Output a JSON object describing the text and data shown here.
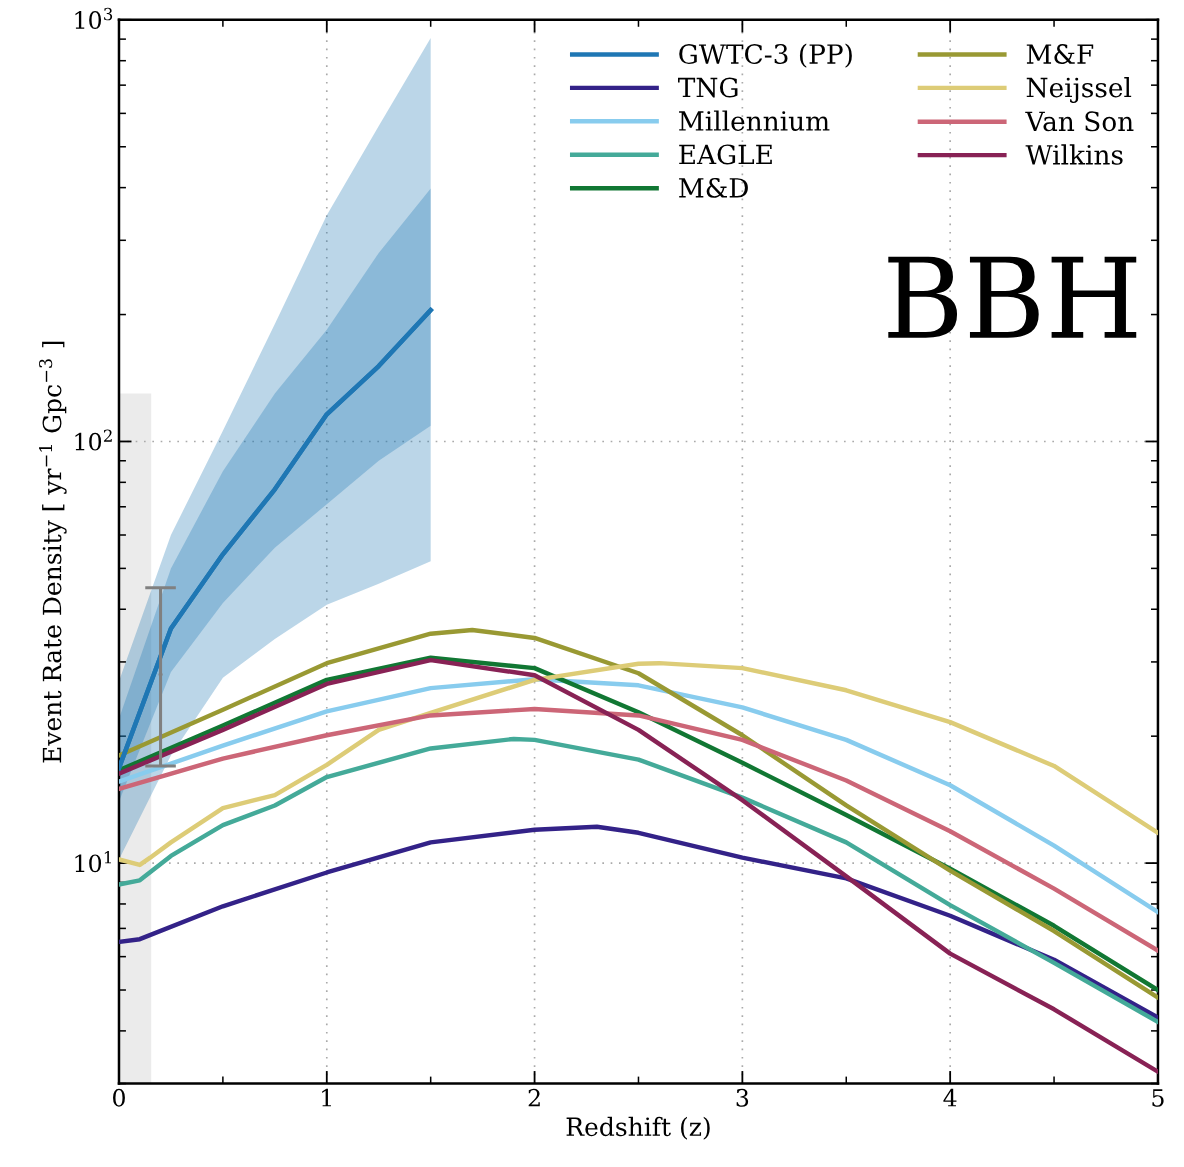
{
  "chart_data": {
    "type": "line",
    "xlabel": "Redshift (z)",
    "ylabel": "Event Rate Density [ yr$^{−1}$ Gpc$^{−3}$ ]",
    "log": "y",
    "xlim": [
      0,
      5
    ],
    "ylim": [
      3,
      1000
    ],
    "xticks": [
      0,
      1,
      2,
      3,
      4,
      5
    ],
    "yticks": [
      {
        "value": 10,
        "label": "10$^{1}$"
      },
      {
        "value": 100,
        "label": "10$^{2}$"
      },
      {
        "value": 1000,
        "label": "10$^{3}$"
      }
    ],
    "grid": true,
    "legend": "top right",
    "line_style": "solid",
    "marker": "none",
    "annotations": [
      "BBH"
    ],
    "series": [
      {
        "type": "area",
        "color": "#ebebeb",
        "x": [
          0,
          0.155
        ],
        "values": [
          130,
          130
        ]
      },
      {
        "color": "#1f77b4",
        "x": [
          0,
          0.25,
          0.5,
          0.75,
          1,
          1.25,
          1.5
        ],
        "values": [
          16.8,
          36,
          54,
          77,
          116,
          151,
          205
        ],
        "lower": [
          14,
          28.4,
          41.4,
          56,
          71,
          90,
          109
        ],
        "upper": [
          22,
          50,
          85,
          130,
          184,
          280,
          398
        ]
      },
      {
        "name": "GWTC-3 (PP)",
        "color": "#1f77b4",
        "x": [
          0,
          0.25,
          0.5,
          0.75,
          1,
          1.25,
          1.5
        ],
        "values": [
          16.8,
          36,
          54,
          77,
          116,
          151,
          205
        ],
        "lower": [
          10.2,
          18,
          27.5,
          34,
          41,
          46,
          52
        ],
        "upper": [
          27,
          60,
          106,
          190,
          344,
          560,
          906
        ]
      },
      {
        "name": "TNG",
        "color": "#332288",
        "x": [
          0,
          0.1,
          0.5,
          1,
          1.5,
          2,
          2.3,
          2.5,
          3,
          3.5,
          4,
          4.5,
          5
        ],
        "values": [
          6.5,
          6.6,
          7.9,
          9.5,
          11.2,
          12.0,
          12.2,
          11.8,
          10.3,
          9.2,
          7.5,
          5.9,
          4.3
        ]
      },
      {
        "name": "Millennium",
        "color": "#88ccee",
        "x": [
          0,
          0.5,
          1,
          1.5,
          2,
          2.5,
          3,
          3.5,
          4,
          4.5,
          5
        ],
        "values": [
          15.6,
          19.0,
          22.9,
          26.0,
          27.3,
          26.4,
          23.4,
          19.6,
          15.3,
          11.0,
          7.65
        ]
      },
      {
        "name": "EAGLE",
        "color": "#44aa99",
        "x": [
          0,
          0.1,
          0.25,
          0.5,
          0.75,
          1,
          1.5,
          1.9,
          2,
          2.5,
          3,
          3.5,
          4,
          4.5,
          5
        ],
        "values": [
          8.9,
          9.1,
          10.4,
          12.3,
          13.7,
          16.0,
          18.7,
          19.7,
          19.6,
          17.6,
          14.3,
          11.2,
          7.95,
          5.8,
          4.2
        ]
      },
      {
        "name": "M&D",
        "color": "#117733",
        "x": [
          0,
          0.5,
          1,
          1.5,
          2,
          2.5,
          3,
          3.5,
          4,
          4.5,
          5
        ],
        "values": [
          16.6,
          21.2,
          27.2,
          30.7,
          29.0,
          22.8,
          17.3,
          13.0,
          9.7,
          7.1,
          5.0
        ]
      },
      {
        "name": "M&F",
        "color": "#999933",
        "x": [
          0,
          0.5,
          1,
          1.5,
          1.7,
          2,
          2.5,
          3,
          3.5,
          4,
          4.5,
          5
        ],
        "values": [
          18.0,
          23.1,
          29.8,
          35.0,
          35.7,
          34.2,
          28.2,
          20.1,
          13.7,
          9.6,
          6.9,
          4.8
        ]
      },
      {
        "name": "Neijssel",
        "color": "#ddcc77",
        "x": [
          0,
          0.1,
          0.15,
          0.25,
          0.5,
          0.75,
          1,
          1.25,
          1.5,
          2,
          2.5,
          2.6,
          3,
          3.5,
          4,
          4.5,
          5
        ],
        "values": [
          10.2,
          9.9,
          10.3,
          11.2,
          13.5,
          14.5,
          17.1,
          20.7,
          22.7,
          27.2,
          29.7,
          29.8,
          29.0,
          25.7,
          21.6,
          17.0,
          11.8
        ]
      },
      {
        "name": "Van Son",
        "color": "#cc6677",
        "x": [
          0,
          0.5,
          1,
          1.5,
          2,
          2.5,
          3,
          3.5,
          4,
          4.5,
          5
        ],
        "values": [
          15.0,
          17.7,
          20.1,
          22.4,
          23.2,
          22.4,
          19.6,
          15.7,
          11.9,
          8.7,
          6.2
        ]
      },
      {
        "name": "Wilkins",
        "color": "#882255",
        "x": [
          0,
          0.5,
          1,
          1.5,
          2,
          2.5,
          3,
          3.5,
          4,
          4.5,
          5
        ],
        "values": [
          16.3,
          20.7,
          26.6,
          30.3,
          27.9,
          20.7,
          14.1,
          9.3,
          6.1,
          4.5,
          3.2
        ]
      },
      {
        "type": "scatter",
        "color": "#808080",
        "x": [
          0.2
        ],
        "values": [
          28
        ],
        "errors": [
          [
            17,
            45
          ]
        ],
        "marker": "circle"
      }
    ]
  }
}
